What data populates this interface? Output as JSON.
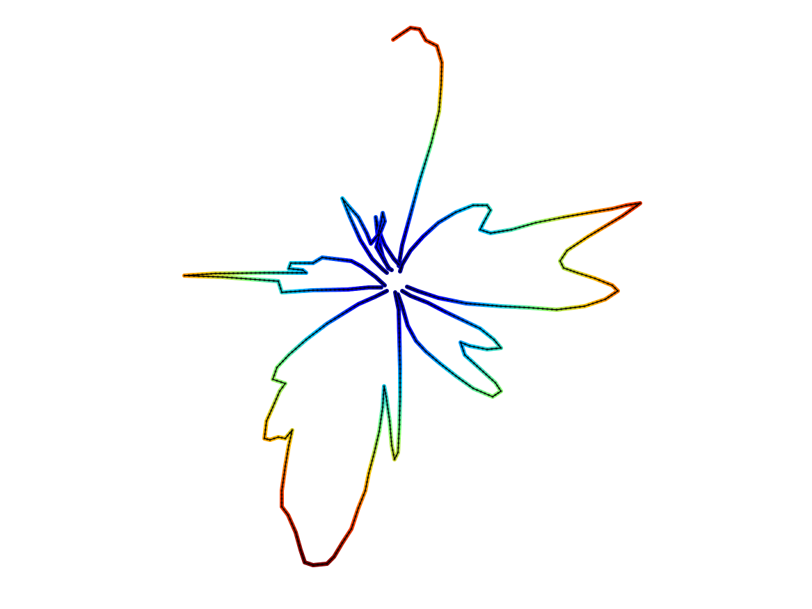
{
  "figure": {
    "background": "#ffffff",
    "axes_visible": false,
    "shape": "leaf-outline",
    "colormap": "jet",
    "colormap_stops": [
      "#00007f",
      "#0000ff",
      "#00bfff",
      "#7fff7f",
      "#ffbf00",
      "#ff3f00",
      "#7f0000"
    ],
    "line_color": "#000000",
    "marker": "dot"
  }
}
